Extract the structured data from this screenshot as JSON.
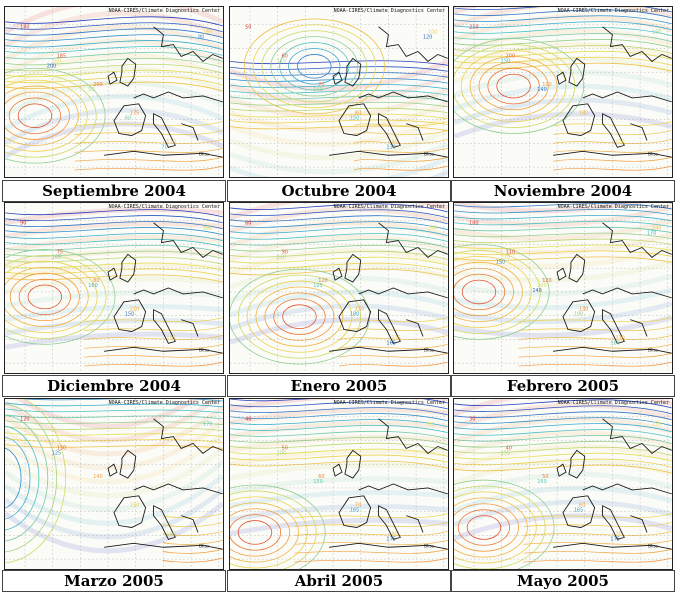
{
  "header_text": "NOAA-CIRES/Climate Diagnostics Center",
  "map_label": "Bliss",
  "panels": [
    {
      "caption": "Septiembre 2004",
      "contour_labels": [
        "180",
        "185",
        "200",
        "175",
        "170",
        "165",
        "160",
        "50",
        "60",
        "70",
        "80",
        "200"
      ]
    },
    {
      "caption": "Octubre 2004",
      "contour_labels": [
        "50",
        "60",
        "70",
        "80",
        "90",
        "100",
        "110",
        "140",
        "150",
        "130",
        "120"
      ]
    },
    {
      "caption": "Noviembre 2004",
      "contour_labels": [
        "210",
        "200",
        "190",
        "180",
        "170",
        "160",
        "150",
        "140"
      ]
    },
    {
      "caption": "Diciembre 2004",
      "contour_labels": [
        "90",
        "75",
        "80",
        "210",
        "195",
        "180",
        "165",
        "160",
        "150"
      ]
    },
    {
      "caption": "Enero 2005",
      "contour_labels": [
        "60",
        "90",
        "120",
        "150",
        "225",
        "240",
        "210",
        "195",
        "180",
        "165"
      ]
    },
    {
      "caption": "Febrero 2005",
      "contour_labels": [
        "100",
        "110",
        "120",
        "130",
        "230",
        "240",
        "210",
        "200",
        "190",
        "180",
        "170",
        "150",
        "140"
      ]
    },
    {
      "caption": "Marzo 2005",
      "contour_labels": [
        "120",
        "130",
        "140",
        "150",
        "160",
        "170",
        "125"
      ]
    },
    {
      "caption": "Abril 2005",
      "contour_labels": [
        "40",
        "50",
        "60",
        "70",
        "80",
        "90",
        "100",
        "150",
        "165",
        "175"
      ]
    },
    {
      "caption": "Mayo 2005",
      "contour_labels": [
        "30",
        "40",
        "50",
        "60",
        "70",
        "150",
        "155",
        "160",
        "165",
        "175"
      ]
    }
  ],
  "colors": {
    "low": "#2a3fbf",
    "mid": "#f2e04a",
    "high": "#d83030",
    "coast": "#1a1a1a",
    "grid": "#9a9a9a"
  }
}
